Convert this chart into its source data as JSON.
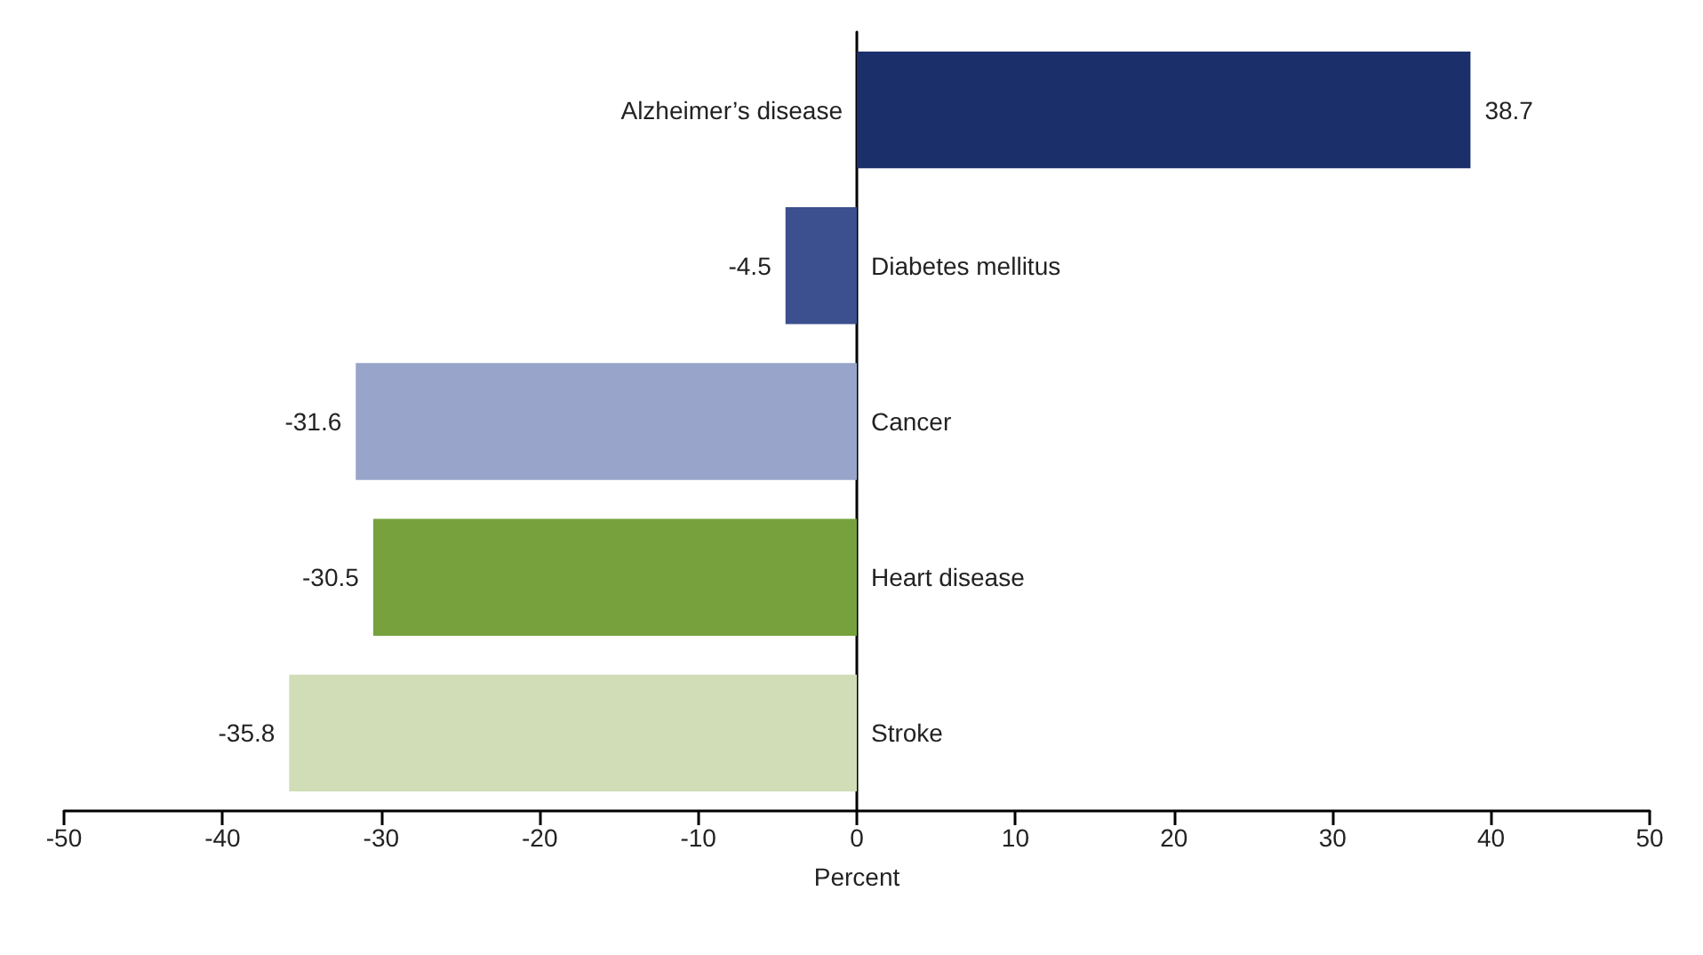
{
  "chart_data": {
    "type": "bar",
    "orientation": "horizontal",
    "categories": [
      "Alzheimer’s disease",
      "Diabetes mellitus",
      "Cancer",
      "Heart disease",
      "Stroke"
    ],
    "values": [
      38.7,
      -4.5,
      -31.6,
      -30.5,
      -35.8
    ],
    "colors": [
      "#1b2f6b",
      "#3c4f8e",
      "#98a4c9",
      "#77a13d",
      "#d0ddb6"
    ],
    "xlabel": "Percent",
    "xlim": [
      -50,
      50
    ],
    "xticks": [
      -50,
      -40,
      -30,
      -20,
      -10,
      0,
      10,
      20,
      30,
      40,
      50
    ],
    "data_labels": true,
    "grid": false
  }
}
